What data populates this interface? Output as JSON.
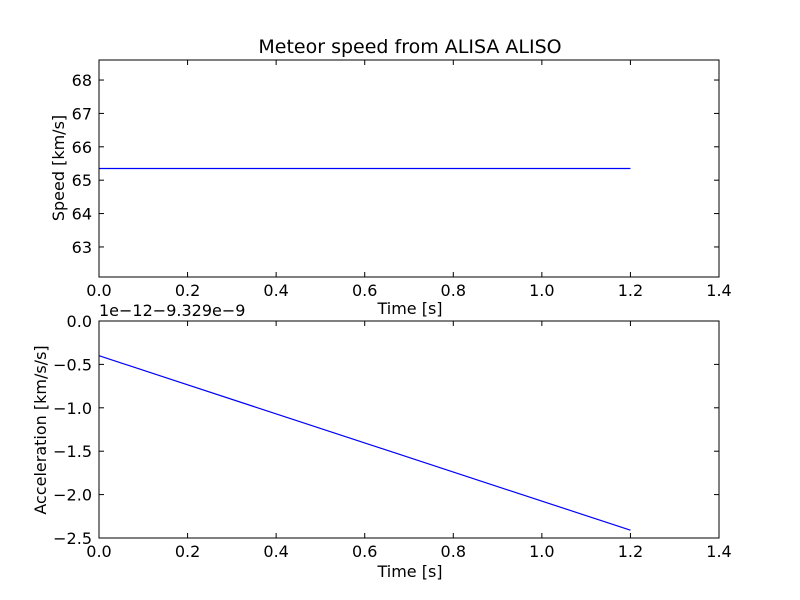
{
  "chart_data": [
    {
      "type": "line",
      "title": "Meteor speed from  ALISA ALISO",
      "xlabel": "Time [s]",
      "ylabel": "Speed [km/s]",
      "xlim": [
        0.0,
        1.4
      ],
      "ylim": [
        62.1,
        68.6
      ],
      "xticks": [
        "0.0",
        "0.2",
        "0.4",
        "0.6",
        "0.8",
        "1.0",
        "1.2",
        "1.4"
      ],
      "yticks": [
        "63",
        "64",
        "65",
        "66",
        "67",
        "68"
      ],
      "grid": false,
      "color": "#0000ff",
      "series": [
        {
          "x": [
            0.0,
            1.2
          ],
          "y": [
            65.35,
            65.35
          ]
        }
      ]
    },
    {
      "type": "line",
      "xlabel": "Time [s]",
      "ylabel": "Acceleration [km/s/s]",
      "offset_label": "1e−12−9.329e−9",
      "xlim": [
        0.0,
        1.4
      ],
      "ylim": [
        -2.5,
        0.0
      ],
      "xticks": [
        "0.0",
        "0.2",
        "0.4",
        "0.6",
        "0.8",
        "1.0",
        "1.2",
        "1.4"
      ],
      "yticks": [
        "0.0",
        "−0.5",
        "−1.0",
        "−1.5",
        "−2.0",
        "−2.5"
      ],
      "grid": false,
      "color": "#0000ff",
      "series": [
        {
          "x": [
            0.0,
            1.2
          ],
          "y": [
            -0.4,
            -2.41
          ]
        }
      ]
    }
  ]
}
